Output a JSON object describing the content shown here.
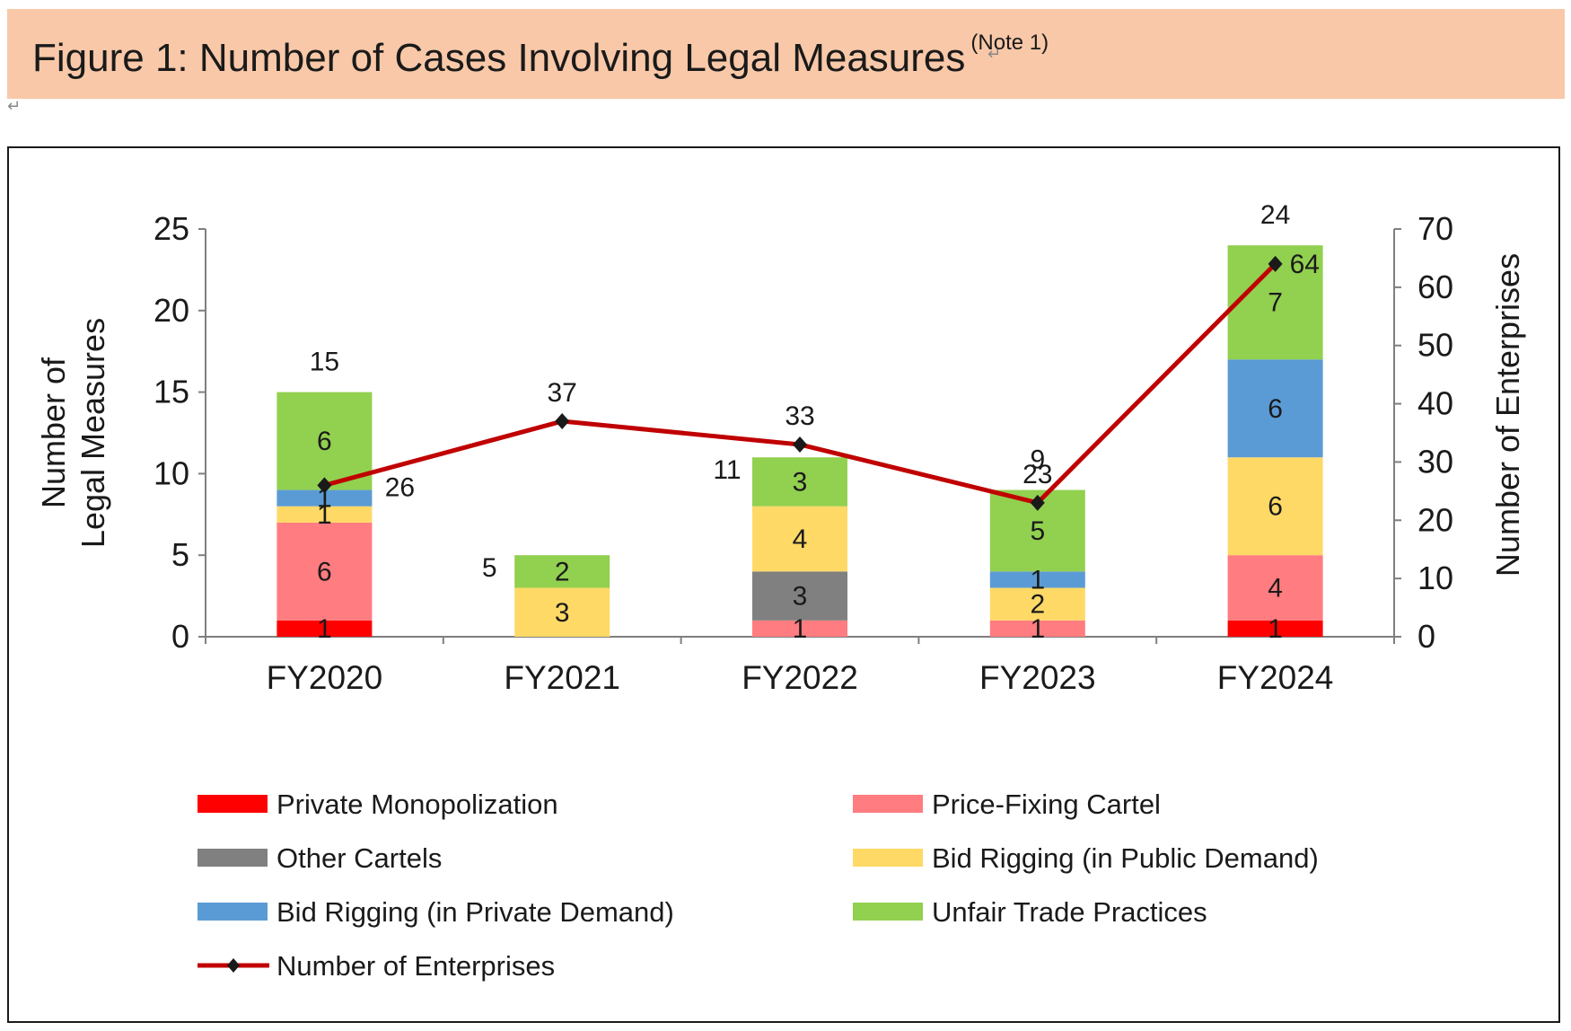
{
  "header": {
    "title": "Figure 1: Number of Cases Involving Legal Measures",
    "note": "(Note 1)",
    "return_mark": "↵"
  },
  "chart_data": {
    "type": "bar",
    "stacked": true,
    "categories": [
      "FY2020",
      "FY2021",
      "FY2022",
      "FY2023",
      "FY2024"
    ],
    "series": [
      {
        "name": "Private Monopolization",
        "color": "#ff0000",
        "values": [
          1,
          0,
          0,
          0,
          1
        ]
      },
      {
        "name": "Price-Fixing Cartel",
        "color": "#ff7c80",
        "values": [
          6,
          0,
          1,
          1,
          4
        ]
      },
      {
        "name": "Other Cartels",
        "color": "#808080",
        "values": [
          0,
          0,
          3,
          0,
          0
        ]
      },
      {
        "name": "Bid Rigging (in Public Demand)",
        "color": "#ffd966",
        "values": [
          1,
          3,
          4,
          2,
          6
        ]
      },
      {
        "name": "Bid Rigging (in Private Demand)",
        "color": "#5b9bd5",
        "values": [
          1,
          0,
          0,
          1,
          6
        ]
      },
      {
        "name": "Unfair Trade Practices",
        "color": "#92d050",
        "values": [
          6,
          2,
          3,
          5,
          7
        ]
      }
    ],
    "totals": [
      15,
      5,
      11,
      9,
      24
    ],
    "line_series": {
      "name": "Number of Enterprises",
      "color": "#c00000",
      "marker_color": "#1a1a1a",
      "axis": "right",
      "values": [
        26,
        37,
        33,
        23,
        64
      ]
    },
    "ylabel_left": [
      "Number of",
      "Legal Measures"
    ],
    "ylabel_right": "Number of Enterprises",
    "ylim_left": [
      0,
      25
    ],
    "ylim_right": [
      0,
      70
    ],
    "yticks_left": [
      0,
      5,
      10,
      15,
      20,
      25
    ],
    "yticks_right": [
      0,
      10,
      20,
      30,
      40,
      50,
      60,
      70
    ],
    "grid": false,
    "legend": {
      "position": "bottom",
      "order": [
        "Private Monopolization",
        "Price-Fixing Cartel",
        "Other Cartels",
        "Bid Rigging (in Public Demand)",
        "Bid Rigging (in Private Demand)",
        "Unfair Trade Practices",
        "Number of Enterprises"
      ]
    }
  }
}
